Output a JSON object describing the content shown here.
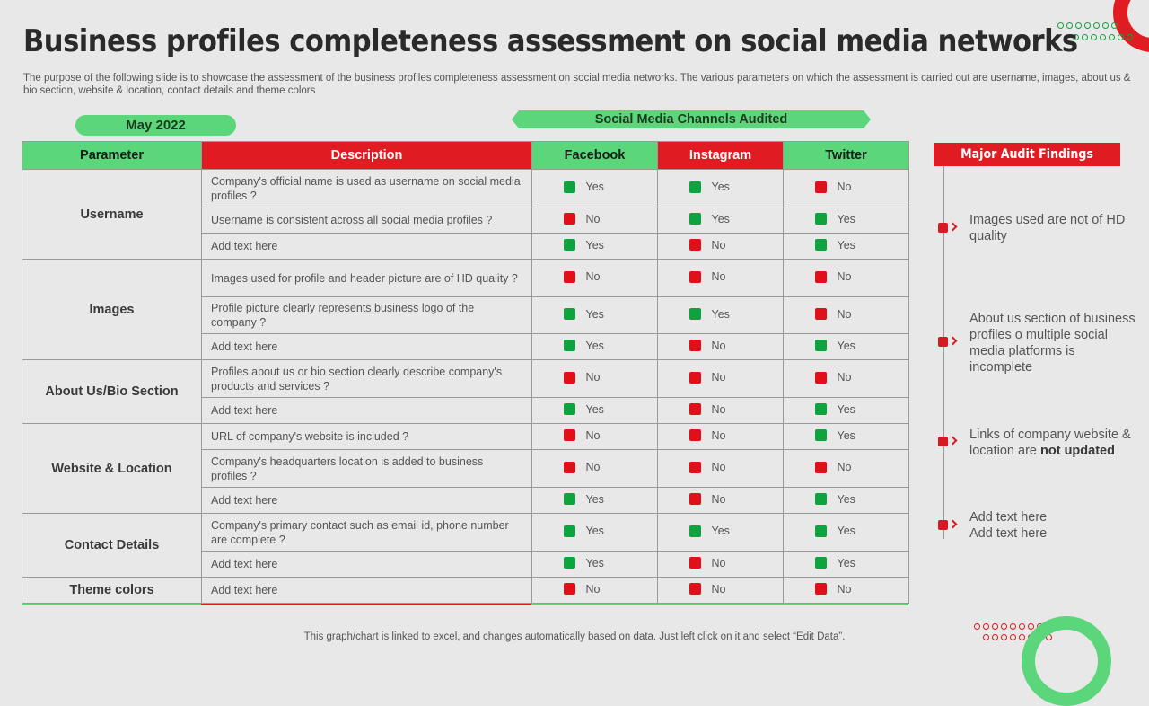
{
  "title": "Business profiles completeness assessment on social media networks",
  "subtitle": "The purpose of the following slide is to showcase the assessment of the business profiles completeness assessment on social media networks. The various parameters on which the assessment is carried out are username, images, about us & bio section, website & location, contact details and theme colors",
  "date_label": "May 2022",
  "channels_label": "Social Media Channels Audited",
  "table": {
    "headers": {
      "parameter": "Parameter",
      "description": "Description",
      "facebook": "Facebook",
      "instagram": "Instagram",
      "twitter": "Twitter"
    },
    "groups": [
      {
        "parameter": "Username",
        "rows": [
          {
            "description": "Company's official name is used as username on social media profiles ?",
            "facebook": "Yes",
            "instagram": "Yes",
            "twitter": "No"
          },
          {
            "description": "Username is consistent across all social media profiles ?",
            "facebook": "No",
            "instagram": "Yes",
            "twitter": "Yes"
          },
          {
            "description": "Add text here",
            "facebook": "Yes",
            "instagram": "No",
            "twitter": "Yes"
          }
        ]
      },
      {
        "parameter": "Images",
        "rows": [
          {
            "description": "Images used for profile and header picture are of HD quality ?",
            "facebook": "No",
            "instagram": "No",
            "twitter": "No"
          },
          {
            "description": "Profile picture clearly represents business logo of the company ?",
            "facebook": "Yes",
            "instagram": "Yes",
            "twitter": "No"
          },
          {
            "description": "Add text here",
            "facebook": "Yes",
            "instagram": "No",
            "twitter": "Yes"
          }
        ]
      },
      {
        "parameter": "About Us/Bio Section",
        "rows": [
          {
            "description": "Profiles about us or bio section clearly describe company's products and services ?",
            "facebook": "No",
            "instagram": "No",
            "twitter": "No"
          },
          {
            "description": "Add text here",
            "facebook": "Yes",
            "instagram": "No",
            "twitter": "Yes"
          }
        ]
      },
      {
        "parameter": "Website & Location",
        "rows": [
          {
            "description": "URL of company's website is included ?",
            "facebook": "No",
            "instagram": "No",
            "twitter": "Yes"
          },
          {
            "description": "Company's headquarters location is added to business profiles ?",
            "facebook": "No",
            "instagram": "No",
            "twitter": "No"
          },
          {
            "description": "Add text here",
            "facebook": "Yes",
            "instagram": "No",
            "twitter": "Yes"
          }
        ]
      },
      {
        "parameter": "Contact Details",
        "rows": [
          {
            "description": "Company's primary contact such as email id, phone number are complete ?",
            "facebook": "Yes",
            "instagram": "Yes",
            "twitter": "Yes"
          },
          {
            "description": "Add text here",
            "facebook": "Yes",
            "instagram": "No",
            "twitter": "Yes"
          }
        ]
      },
      {
        "parameter": "Theme colors",
        "rows": [
          {
            "description": "Add text here",
            "facebook": "No",
            "instagram": "No",
            "twitter": "No"
          }
        ]
      }
    ]
  },
  "findings": {
    "heading": "Major Audit Findings",
    "items": [
      {
        "text": "Images used are not of HD quality",
        "bold": ""
      },
      {
        "text": "About us section of business profiles o multiple social media platforms is incomplete",
        "bold": ""
      },
      {
        "text": "Links of company website & location are",
        "bold": "not updated"
      },
      {
        "text": "Add text here Add text here",
        "bold": ""
      }
    ]
  },
  "footer": "This graph/chart is linked to excel, and changes automatically based on data. Just left click on it and select “Edit Data”.",
  "colors": {
    "green": "#5bd67b",
    "red": "#e01b22",
    "yes": "#0ea33f",
    "no": "#e0101a"
  }
}
